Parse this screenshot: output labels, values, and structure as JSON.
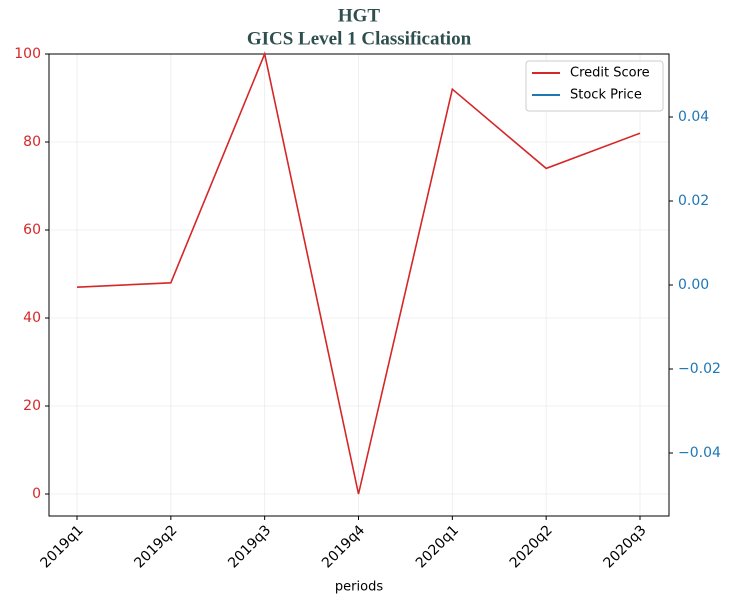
{
  "chart_data": {
    "type": "line",
    "title": "HGT",
    "subtitle": "GICS Level 1 Classification",
    "xlabel": "periods",
    "categories": [
      "2019q1",
      "2019q2",
      "2019q3",
      "2019q4",
      "2020q1",
      "2020q2",
      "2020q3"
    ],
    "series": [
      {
        "name": "Credit Score",
        "color": "#d62728",
        "values": [
          47,
          48,
          100,
          0,
          92,
          74,
          82
        ]
      },
      {
        "name": "Stock Price",
        "color": "#1f77b4",
        "axis": "y2",
        "values": [
          null,
          null,
          null,
          null,
          null,
          null,
          null
        ]
      }
    ],
    "ylim": [
      -5,
      100
    ],
    "yticks": [
      0,
      20,
      40,
      60,
      80,
      100
    ],
    "y2lim": [
      -0.055,
      0.055
    ],
    "y2ticks": [
      {
        "value": -0.04,
        "label": "−0.04"
      },
      {
        "value": -0.02,
        "label": "−0.02"
      },
      {
        "value": 0,
        "label": "0.00"
      },
      0.02,
      0.04
    ],
    "grid": true,
    "legend": "upper right"
  }
}
